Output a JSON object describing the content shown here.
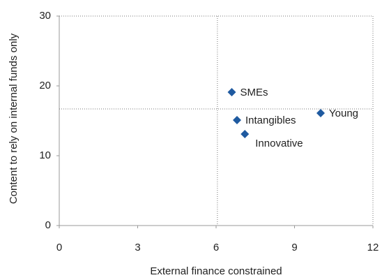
{
  "chart_data": {
    "type": "scatter",
    "x_label": "External finance constrained",
    "y_label": "Content to rely on internal funds only",
    "x": [
      6.6,
      6.8,
      7.1,
      10.0
    ],
    "series": [
      {
        "color": "#1f5aa0",
        "values": [
          19.1,
          15.1,
          13.1,
          16.1
        ]
      }
    ],
    "point_labels": [
      "SMEs",
      "Intangibles",
      "Innovative",
      "Young"
    ],
    "xlim": [
      0,
      12
    ],
    "xticks": [
      0,
      3,
      6,
      9,
      12
    ],
    "ylim": [
      0,
      30
    ],
    "yticks": [
      0,
      10,
      20,
      30
    ],
    "reference_lines": {
      "x": 6.05,
      "y": 16.7
    }
  }
}
